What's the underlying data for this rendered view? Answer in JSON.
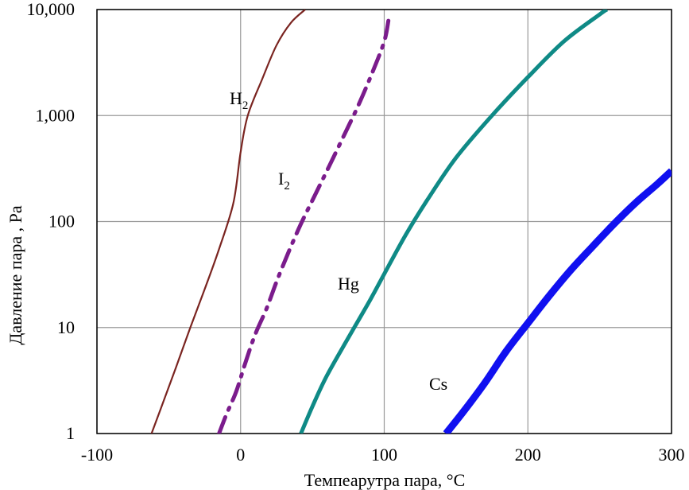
{
  "chart_data": {
    "type": "line",
    "title": "",
    "xlabel": "Темпеарутра пара, °C",
    "ylabel": "Давление пара   , Pa",
    "xlim": [
      -100,
      300
    ],
    "ylim": [
      1,
      10000
    ],
    "y_scale": "log",
    "grid": true,
    "x_ticks": [
      -100,
      0,
      100,
      200,
      300
    ],
    "x_tick_labels": [
      "-100",
      "0",
      "100",
      "200",
      "300"
    ],
    "y_ticks": [
      1,
      10,
      100,
      1000,
      10000
    ],
    "y_tick_labels": [
      "1",
      "10",
      "100",
      "1,000",
      "10,000"
    ],
    "series": [
      {
        "name": "H2",
        "label_main": "H",
        "label_sub": "2",
        "color": "#7a2420",
        "style": "solid",
        "x": [
          -62,
          -55,
          -45,
          -35,
          -25,
          -15,
          -5,
          0,
          5,
          15,
          25,
          35,
          45
        ],
        "y": [
          1,
          1.8,
          4.2,
          10,
          23,
          55,
          150,
          450,
          1000,
          2200,
          4600,
          7500,
          10000
        ]
      },
      {
        "name": "I2",
        "label_main": "I",
        "label_sub": "2",
        "color": "#7b1c8c",
        "style": "dashdot",
        "x": [
          -15,
          -10,
          -3,
          3,
          10,
          18,
          25,
          33,
          42,
          52,
          62,
          72,
          82,
          92,
          100,
          103
        ],
        "y": [
          1,
          1.5,
          2.5,
          4.5,
          8.5,
          15,
          27,
          50,
          95,
          180,
          340,
          650,
          1250,
          2600,
          5000,
          8000
        ]
      },
      {
        "name": "Hg",
        "label_main": "Hg",
        "label_sub": "",
        "color": "#0f8a86",
        "style": "solid",
        "x": [
          42,
          50,
          60,
          75,
          90,
          100,
          115,
          130,
          150,
          175,
          200,
          225,
          250,
          255
        ],
        "y": [
          1,
          1.8,
          3.5,
          8,
          18,
          32,
          75,
          160,
          400,
          1000,
          2300,
          5000,
          9000,
          10000
        ]
      },
      {
        "name": "Cs",
        "label_main": "Cs",
        "label_sub": "",
        "color": "#1010f0",
        "style": "solid",
        "x": [
          143,
          155,
          170,
          185,
          200,
          215,
          230,
          245,
          260,
          275,
          290,
          300
        ],
        "y": [
          1,
          1.6,
          3.0,
          6.0,
          11,
          20,
          35,
          58,
          95,
          150,
          225,
          300
        ]
      }
    ]
  }
}
